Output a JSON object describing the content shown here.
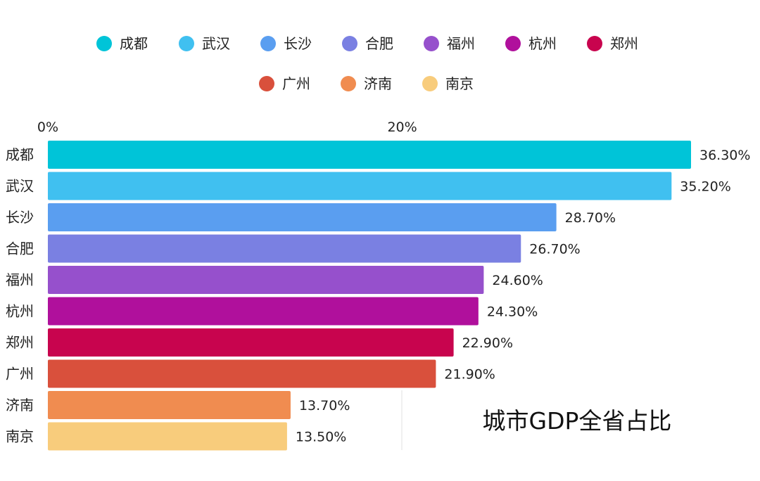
{
  "chart_data": {
    "type": "bar",
    "orientation": "horizontal",
    "title": "",
    "xlabel": "",
    "ylabel": "",
    "xlim": [
      0,
      36.3
    ],
    "x_ticks": [
      {
        "value": 0,
        "label": "0%"
      },
      {
        "value": 20,
        "label": "20%"
      }
    ],
    "categories": [
      "成都",
      "武汉",
      "长沙",
      "合肥",
      "福州",
      "杭州",
      "郑州",
      "广州",
      "济南",
      "南京"
    ],
    "values": [
      36.3,
      35.2,
      28.7,
      26.7,
      24.6,
      24.3,
      22.9,
      21.9,
      13.7,
      13.5
    ],
    "value_labels": [
      "36.30%",
      "35.20%",
      "28.70%",
      "26.70%",
      "24.60%",
      "24.30%",
      "22.90%",
      "21.90%",
      "13.70%",
      "13.50%"
    ],
    "colors": [
      "#00c4d8",
      "#40c0f0",
      "#5a9ef0",
      "#7a80e2",
      "#9650cc",
      "#b0109c",
      "#c8044e",
      "#d9503c",
      "#f08c50",
      "#f8cc7c"
    ],
    "legend": {
      "placement": "top",
      "rows": [
        [
          "成都",
          "武汉",
          "长沙",
          "合肥",
          "福州",
          "杭州",
          "郑州"
        ],
        [
          "广州",
          "济南",
          "南京"
        ]
      ]
    },
    "annotation": "城市GDP全省占比",
    "grid": false
  }
}
